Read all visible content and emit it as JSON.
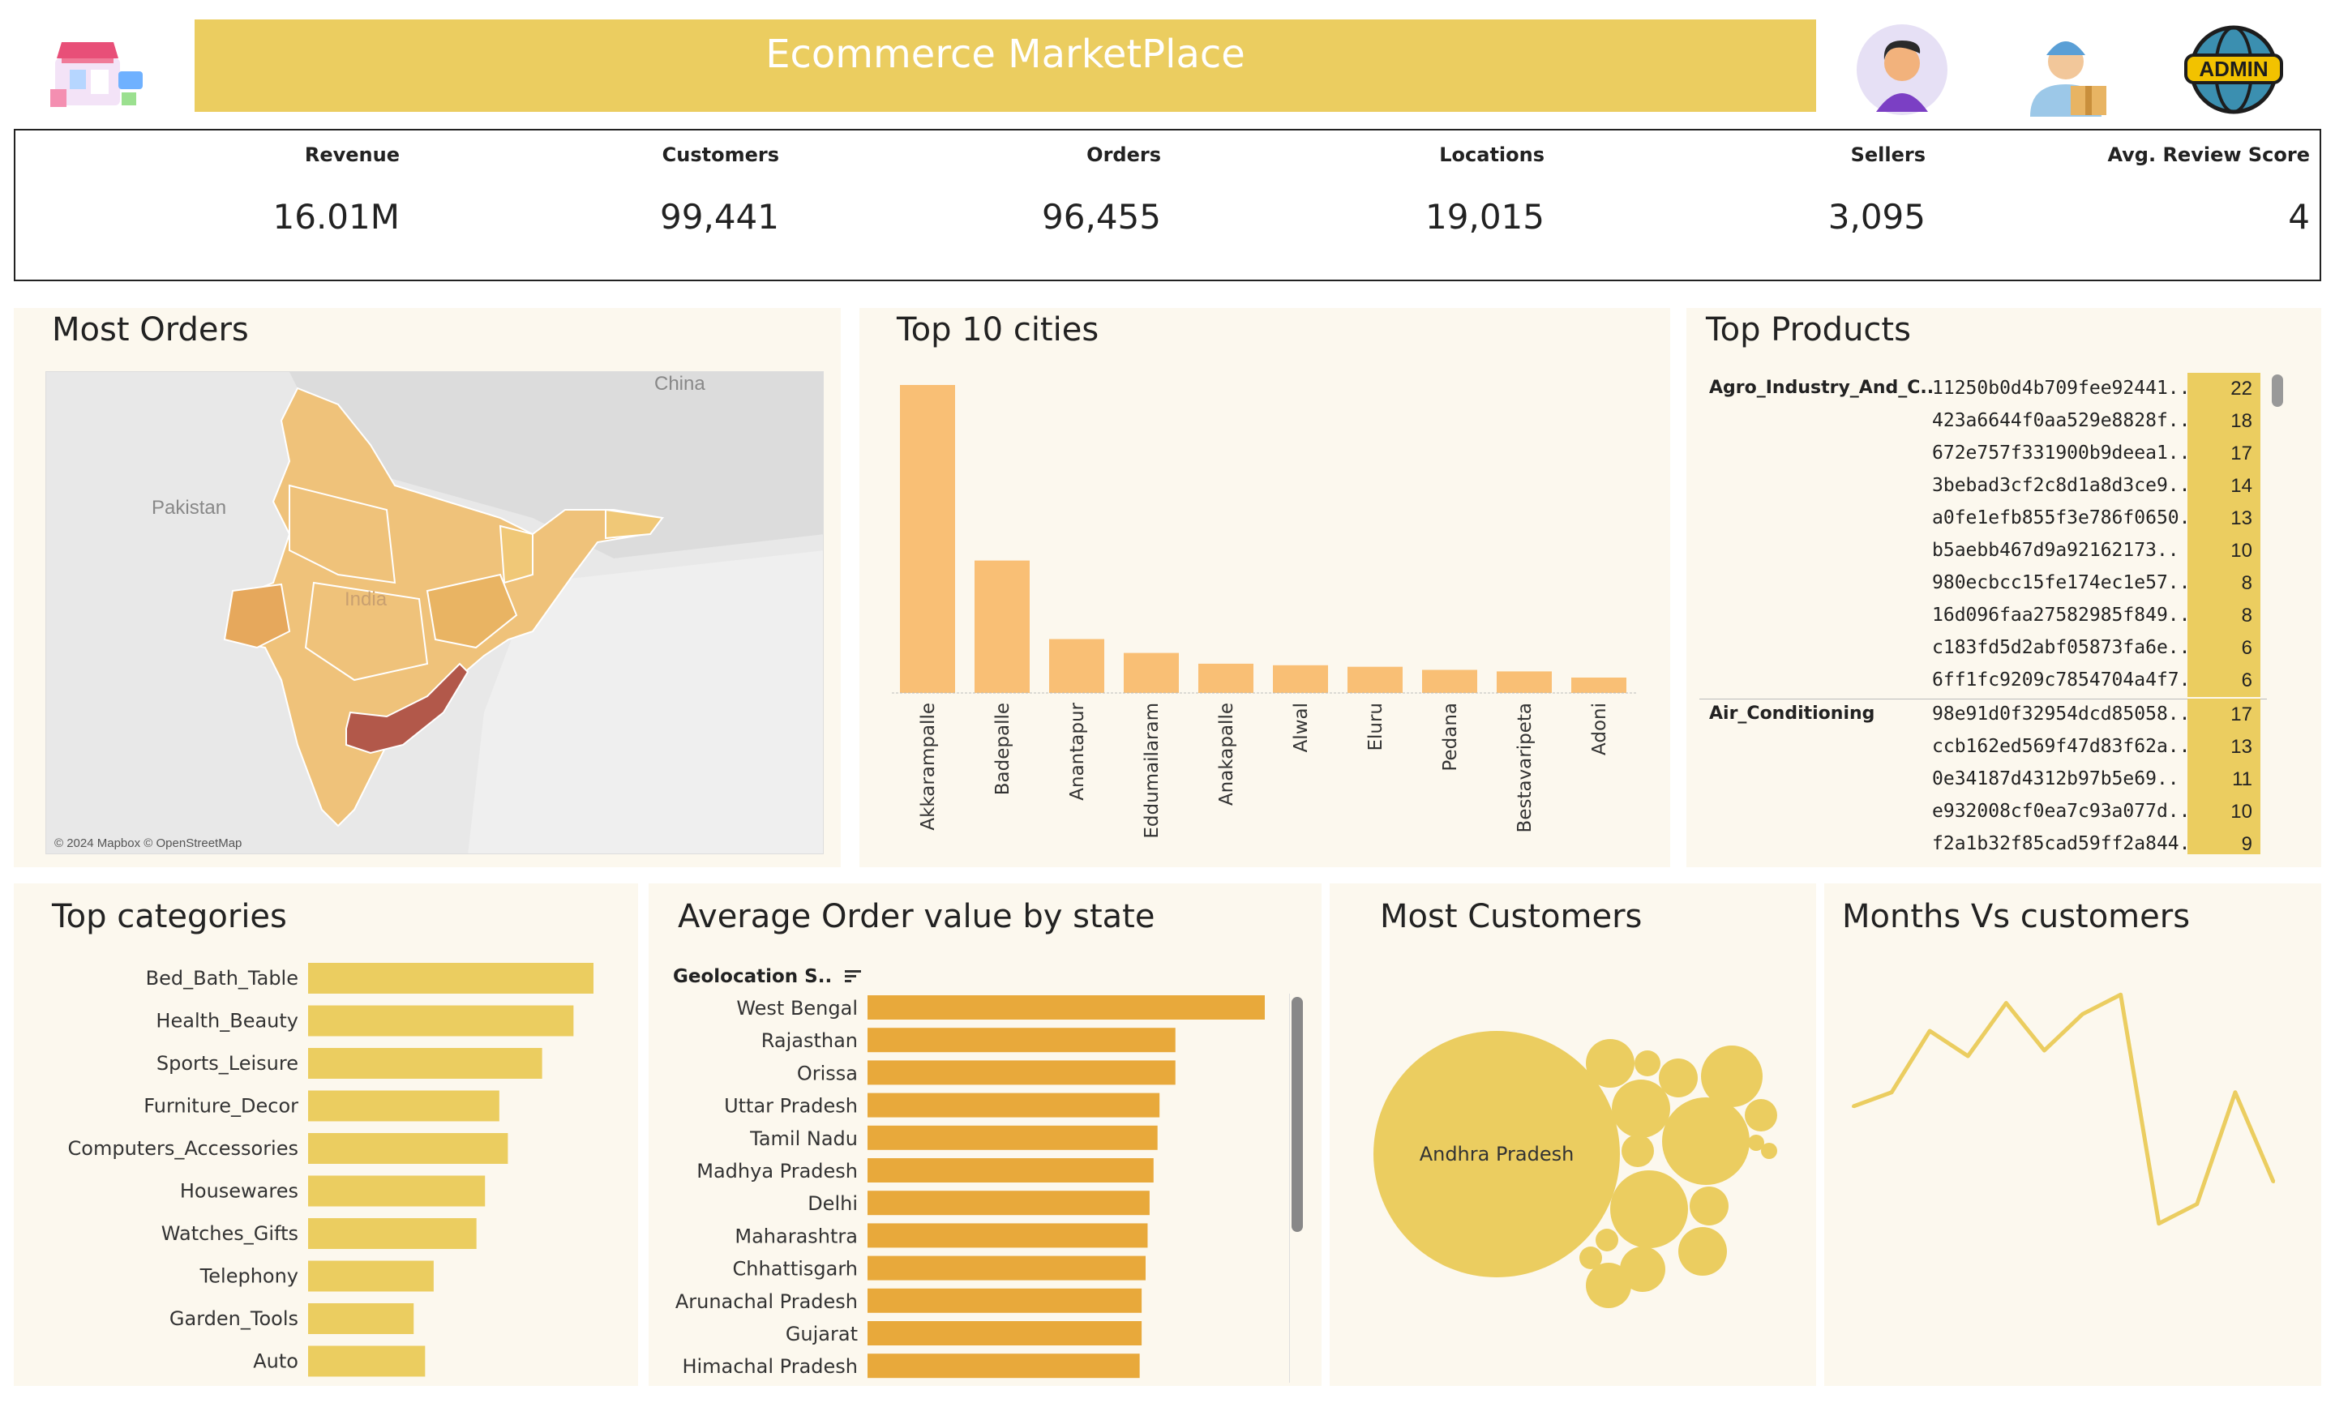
{
  "header": {
    "title": "Ecommerce MarketPlace",
    "icons": [
      "storefront-icon",
      "user-avatar-icon",
      "delivery-man-icon",
      "admin-globe-icon"
    ],
    "admin_badge": "ADMIN"
  },
  "kpis": [
    {
      "label": "Revenue",
      "value": "16.01M"
    },
    {
      "label": "Customers",
      "value": "99,441"
    },
    {
      "label": "Orders",
      "value": "96,455"
    },
    {
      "label": "Locations",
      "value": "19,015"
    },
    {
      "label": "Sellers",
      "value": "3,095"
    },
    {
      "label": "Avg. Review Score",
      "value": "4"
    }
  ],
  "most_orders": {
    "title": "Most Orders",
    "map_labels": {
      "china": "China",
      "pakistan": "Pakistan",
      "india": "India"
    },
    "attribution": "© 2024 Mapbox © OpenStreetMap",
    "highlight_color": "#b2584a",
    "base_color": "#efc27a"
  },
  "top_cities": {
    "title": "Top 10 cities"
  },
  "top_products": {
    "title": "Top Products",
    "groups": [
      {
        "category": "Agro_Industry_And_C..",
        "items": [
          {
            "id": "11250b0d4b709fee92441..",
            "count": "22"
          },
          {
            "id": "423a6644f0aa529e8828f..",
            "count": "18"
          },
          {
            "id": "672e757f331900b9deea1..",
            "count": "17"
          },
          {
            "id": "3bebad3cf2c8d1a8d3ce9..",
            "count": "14"
          },
          {
            "id": "a0fe1efb855f3e786f0650..",
            "count": "13"
          },
          {
            "id": "b5aebb467d9a92162173..",
            "count": "10"
          },
          {
            "id": "980ecbcc15fe174ec1e57..",
            "count": "8"
          },
          {
            "id": "16d096faa27582985f849..",
            "count": "8"
          },
          {
            "id": "c183fd5d2abf05873fa6e..",
            "count": "6"
          },
          {
            "id": "6ff1fc9209c7854704a4f7..",
            "count": "6"
          }
        ]
      },
      {
        "category": "Air_Conditioning",
        "items": [
          {
            "id": "98e91d0f32954dcd85058..",
            "count": "17"
          },
          {
            "id": "ccb162ed569f47d83f62a..",
            "count": "13"
          },
          {
            "id": "0e34187d4312b97b5e69..",
            "count": "11"
          },
          {
            "id": "e932008cf0ea7c93a077d..",
            "count": "10"
          },
          {
            "id": "f2a1b32f85cad59ff2a844..",
            "count": "9"
          }
        ]
      }
    ]
  },
  "top_categories": {
    "title": "Top categories"
  },
  "avg_order_value": {
    "title": "Average  Order value by state",
    "column_header": "Geolocation S.."
  },
  "most_customers": {
    "title": "Most Customers",
    "main_bubble_label": "Andhra Pradesh"
  },
  "months_customers": {
    "title": "Months Vs customers"
  },
  "chart_data": [
    {
      "id": "top_cities",
      "type": "bar",
      "title": "Top 10 cities",
      "categories": [
        "Akkarampalle",
        "Badepalle",
        "Anantapur",
        "Eddumailaram",
        "Anakapalle",
        "Alwal",
        "Eluru",
        "Pedana",
        "Bestavaripeta",
        "Adoni"
      ],
      "values": [
        100,
        43,
        17.5,
        13,
        9.5,
        9,
        8.5,
        7.5,
        7,
        5
      ],
      "color": "#f9bf75"
    },
    {
      "id": "top_categories",
      "type": "bar",
      "title": "Top categories",
      "categories": [
        "Bed_Bath_Table",
        "Health_Beauty",
        "Sports_Leisure",
        "Furniture_Decor",
        "Computers_Accessories",
        "Housewares",
        "Watches_Gifts",
        "Telephony",
        "Garden_Tools",
        "Auto"
      ],
      "values": [
        100,
        93,
        82,
        67,
        70,
        62,
        59,
        44,
        37,
        41
      ],
      "color": "#ebcd60"
    },
    {
      "id": "avg_order_value",
      "type": "bar",
      "title": "Average  Order value by state",
      "categories": [
        "West Bengal",
        "Rajasthan",
        "Orissa",
        "Uttar Pradesh",
        "Tamil Nadu",
        "Madhya Pradesh",
        "Delhi",
        "Maharashtra",
        "Chhattisgarh",
        "Arunachal Pradesh",
        "Gujarat",
        "Himachal Pradesh"
      ],
      "values": [
        100,
        77.5,
        77.5,
        73.5,
        73,
        72,
        71,
        70.5,
        70,
        69,
        69,
        68.5
      ],
      "color": "#e8a93b"
    },
    {
      "id": "months_customers",
      "type": "line",
      "title": "Months Vs customers",
      "x": [
        1,
        2,
        3,
        4,
        5,
        6,
        7,
        8,
        9,
        10,
        11,
        12
      ],
      "values": [
        45,
        50,
        72,
        63,
        82,
        65,
        78,
        85,
        3,
        10,
        50,
        18
      ],
      "color": "#ebcd60"
    },
    {
      "id": "most_customers",
      "type": "bubble",
      "title": "Most Customers",
      "labels": [
        "Andhra Pradesh"
      ],
      "color": "#ebcd60"
    }
  ]
}
